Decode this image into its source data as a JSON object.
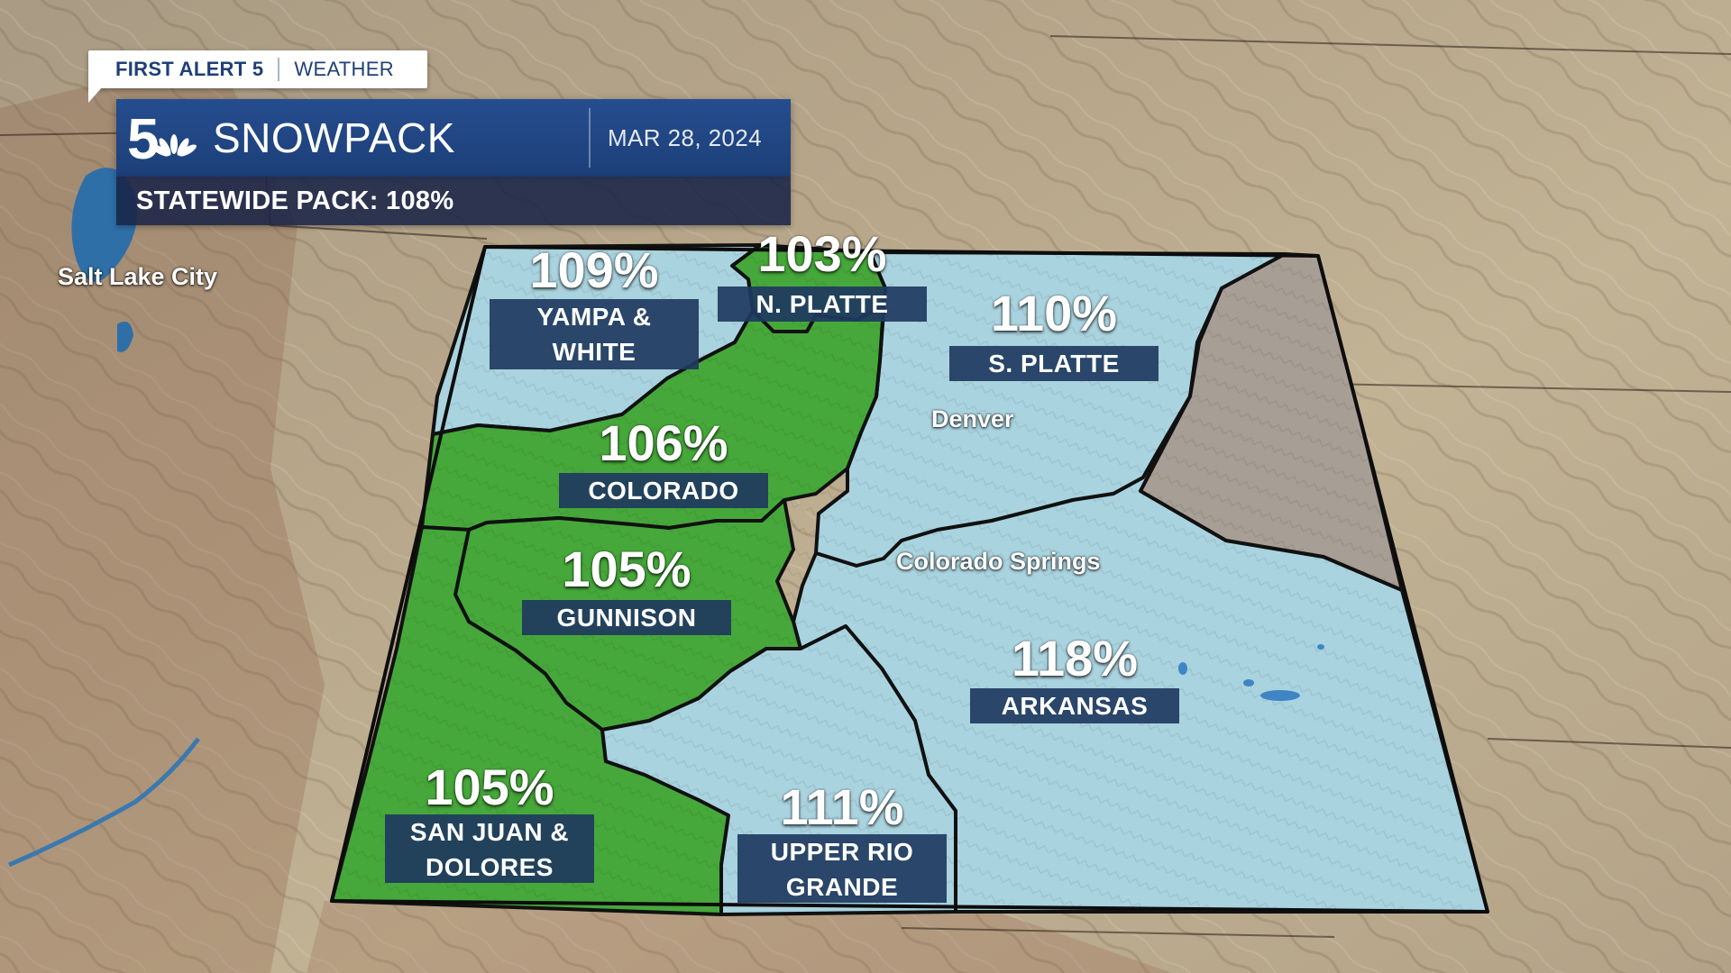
{
  "header": {
    "brand_primary": "FIRST ALERT 5",
    "brand_secondary": "WEATHER",
    "title": "SNOWPACK",
    "date": "MAR 28, 2024",
    "statewide": "STATEWIDE PACK: 108%"
  },
  "colors": {
    "above_normal_green": "#46a83a",
    "blue_basin": "#a9d3df",
    "no_data_gray": "#a79e95",
    "label_box": "#1f3a5f",
    "header_blue": "#1f4483"
  },
  "basins": [
    {
      "id": "yampa-white",
      "percent": "109%",
      "name": "YAMPA &\nWHITE"
    },
    {
      "id": "north-platte",
      "percent": "103%",
      "name": "N. PLATTE"
    },
    {
      "id": "south-platte",
      "percent": "110%",
      "name": "S. PLATTE"
    },
    {
      "id": "colorado",
      "percent": "106%",
      "name": "COLORADO"
    },
    {
      "id": "gunnison",
      "percent": "105%",
      "name": "GUNNISON"
    },
    {
      "id": "arkansas",
      "percent": "118%",
      "name": "ARKANSAS"
    },
    {
      "id": "san-juan-dolores",
      "percent": "105%",
      "name": "SAN JUAN &\nDOLORES"
    },
    {
      "id": "upper-rio-grande",
      "percent": "111%",
      "name": "UPPER RIO\nGRANDE"
    }
  ],
  "cities": [
    {
      "name": "Salt Lake City"
    },
    {
      "name": "Denver"
    },
    {
      "name": "Colorado Springs"
    }
  ]
}
